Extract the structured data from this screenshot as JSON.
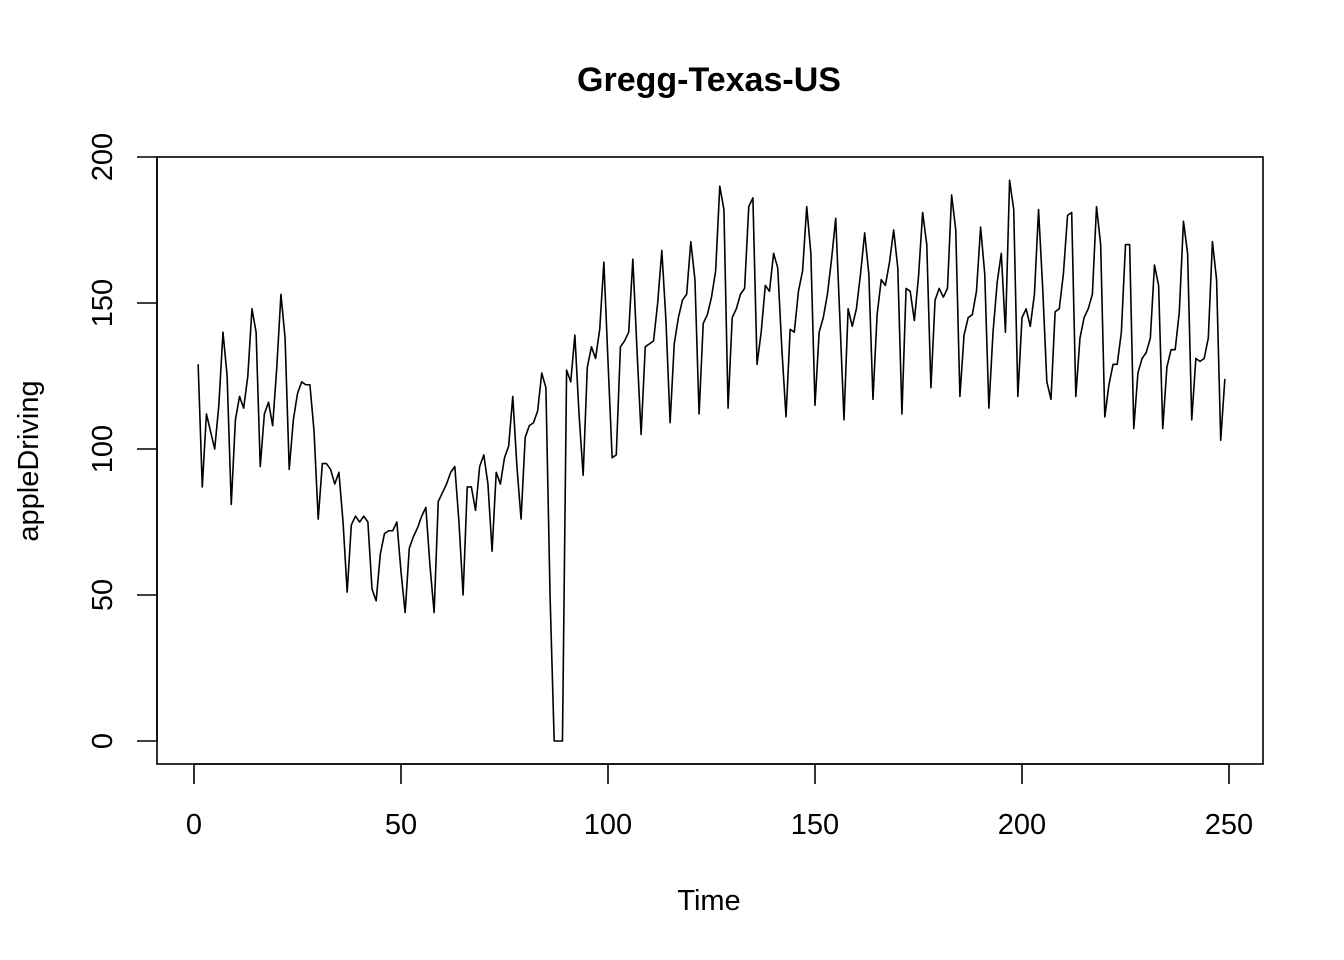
{
  "chart_data": {
    "type": "line",
    "title": "Gregg-Texas-US",
    "xlabel": "Time",
    "ylabel": "appleDriving",
    "xlim": [
      1,
      248
    ],
    "ylim": [
      0,
      192
    ],
    "x_ticks": [
      0,
      50,
      100,
      150,
      200,
      250
    ],
    "y_ticks": [
      0,
      50,
      100,
      150,
      200
    ],
    "x_tick_labels": [
      "0",
      "50",
      "100",
      "150",
      "200",
      "250"
    ],
    "y_tick_labels": [
      "0",
      "50",
      "100",
      "150",
      "200"
    ],
    "grid": false,
    "legend": "none",
    "color": "#000000",
    "series": [
      {
        "values": [
          129,
          87,
          112,
          106,
          100,
          115,
          140,
          125,
          81,
          110,
          118,
          114,
          125,
          148,
          140,
          94,
          112,
          116,
          108,
          128,
          153,
          138,
          93,
          110,
          119,
          123,
          122,
          122,
          106,
          76,
          95,
          95,
          93,
          88,
          92,
          75,
          51,
          74,
          77,
          75,
          77,
          75,
          52,
          48,
          64,
          71,
          72,
          72,
          75,
          58,
          44,
          66,
          70,
          73,
          77,
          80,
          60,
          44,
          82,
          85,
          88,
          92,
          94,
          75,
          50,
          87,
          87,
          79,
          94,
          98,
          88,
          65,
          92,
          88,
          97,
          101,
          118,
          94,
          76,
          104,
          108,
          109,
          113,
          126,
          121,
          50,
          0,
          0,
          0,
          127,
          123,
          139,
          112,
          91,
          128,
          135,
          131,
          141,
          164,
          130,
          97,
          98,
          135,
          137,
          140,
          165,
          134,
          105,
          135,
          136,
          137,
          150,
          168,
          144,
          109,
          136,
          145,
          151,
          153,
          171,
          158,
          112,
          143,
          146,
          152,
          161,
          190,
          182,
          114,
          145,
          148,
          153,
          155,
          183,
          186,
          129,
          140,
          156,
          154,
          167,
          162,
          134,
          111,
          141,
          140,
          154,
          161,
          183,
          167,
          115,
          140,
          145,
          153,
          165,
          179,
          145,
          110,
          148,
          142,
          148,
          160,
          174,
          160,
          117,
          146,
          158,
          156,
          164,
          175,
          162,
          112,
          155,
          154,
          144,
          159,
          181,
          170,
          121,
          151,
          155,
          152,
          155,
          187,
          175,
          118,
          139,
          145,
          146,
          154,
          176,
          160,
          114,
          140,
          157,
          167,
          140,
          192,
          182,
          118,
          145,
          148,
          142,
          153,
          182,
          155,
          123,
          117,
          147,
          148,
          160,
          180,
          181,
          118,
          138,
          145,
          148,
          153,
          183,
          170,
          111,
          122,
          129,
          129,
          140,
          170,
          170,
          107,
          126,
          131,
          133,
          138,
          163,
          156,
          107,
          128,
          134,
          134,
          147,
          178,
          167,
          110,
          131,
          130,
          131,
          138,
          171,
          158,
          103,
          124
        ]
      }
    ]
  }
}
